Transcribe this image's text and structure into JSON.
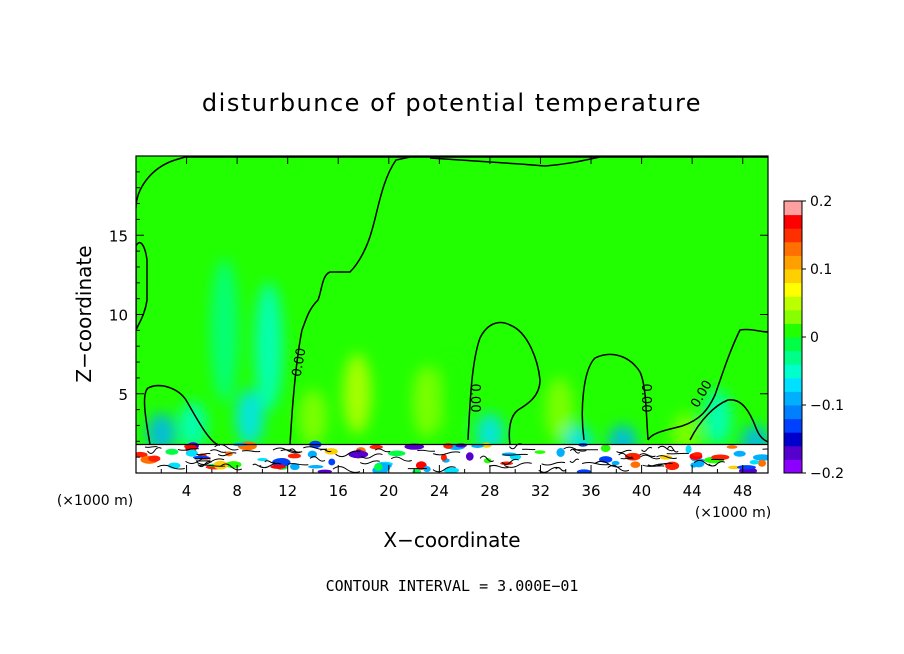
{
  "chart_data": {
    "type": "heatmap",
    "title": "disturbunce of potential temperature",
    "xlabel": "X−coordinate",
    "ylabel": "Z−coordinate",
    "x_unit": "(×1000 m)",
    "z_unit": "(×1000 m)",
    "xlim": [
      0,
      50
    ],
    "ylim": [
      0,
      20
    ],
    "x_ticks": [
      4,
      8,
      12,
      16,
      20,
      24,
      28,
      32,
      36,
      40,
      44,
      48
    ],
    "y_ticks": [
      5,
      10,
      15
    ],
    "contour_interval_text": "CONTOUR INTERVAL = 3.000E−01",
    "contour_label": "0.00",
    "colorbar": {
      "range": [
        -0.2,
        0.2
      ],
      "tick_labels": [
        "0.2",
        "0.1",
        "0",
        "−0.1",
        "−0.2"
      ],
      "tick_values": [
        0.2,
        0.1,
        0,
        -0.1,
        -0.2
      ],
      "colors": [
        "#8b00ff",
        "#5500cc",
        "#0000cd",
        "#0040ff",
        "#0080ff",
        "#00b0ff",
        "#00e0ff",
        "#00ffcc",
        "#00ff88",
        "#00ff44",
        "#22ff00",
        "#88ff00",
        "#bbff00",
        "#ffff00",
        "#ffd000",
        "#ffa000",
        "#ff7000",
        "#ff3000",
        "#ff0000",
        "#ffa0a0"
      ]
    },
    "background_field": 0.0,
    "field_patches": [
      {
        "x": 7.0,
        "z": 9.0,
        "v": -0.03
      },
      {
        "x": 10.5,
        "z": 8.0,
        "v": -0.04
      },
      {
        "x": 4.5,
        "z": 3.0,
        "v": -0.06
      },
      {
        "x": 9.0,
        "z": 3.5,
        "v": -0.08
      },
      {
        "x": 2.0,
        "z": 2.5,
        "v": -0.09
      },
      {
        "x": 14.0,
        "z": 3.5,
        "v": 0.03
      },
      {
        "x": 17.5,
        "z": 5.0,
        "v": 0.04
      },
      {
        "x": 23.0,
        "z": 4.5,
        "v": 0.03
      },
      {
        "x": 25.0,
        "z": 5.0,
        "v": 0.02
      },
      {
        "x": 28.0,
        "z": 2.5,
        "v": -0.08
      },
      {
        "x": 33.5,
        "z": 4.0,
        "v": 0.03
      },
      {
        "x": 35.0,
        "z": 2.0,
        "v": -0.07
      },
      {
        "x": 38.5,
        "z": 2.0,
        "v": -0.1
      },
      {
        "x": 43.5,
        "z": 2.5,
        "v": 0.03
      },
      {
        "x": 46.0,
        "z": 3.5,
        "v": -0.05
      },
      {
        "x": 49.0,
        "z": 2.0,
        "v": -0.1
      }
    ]
  }
}
